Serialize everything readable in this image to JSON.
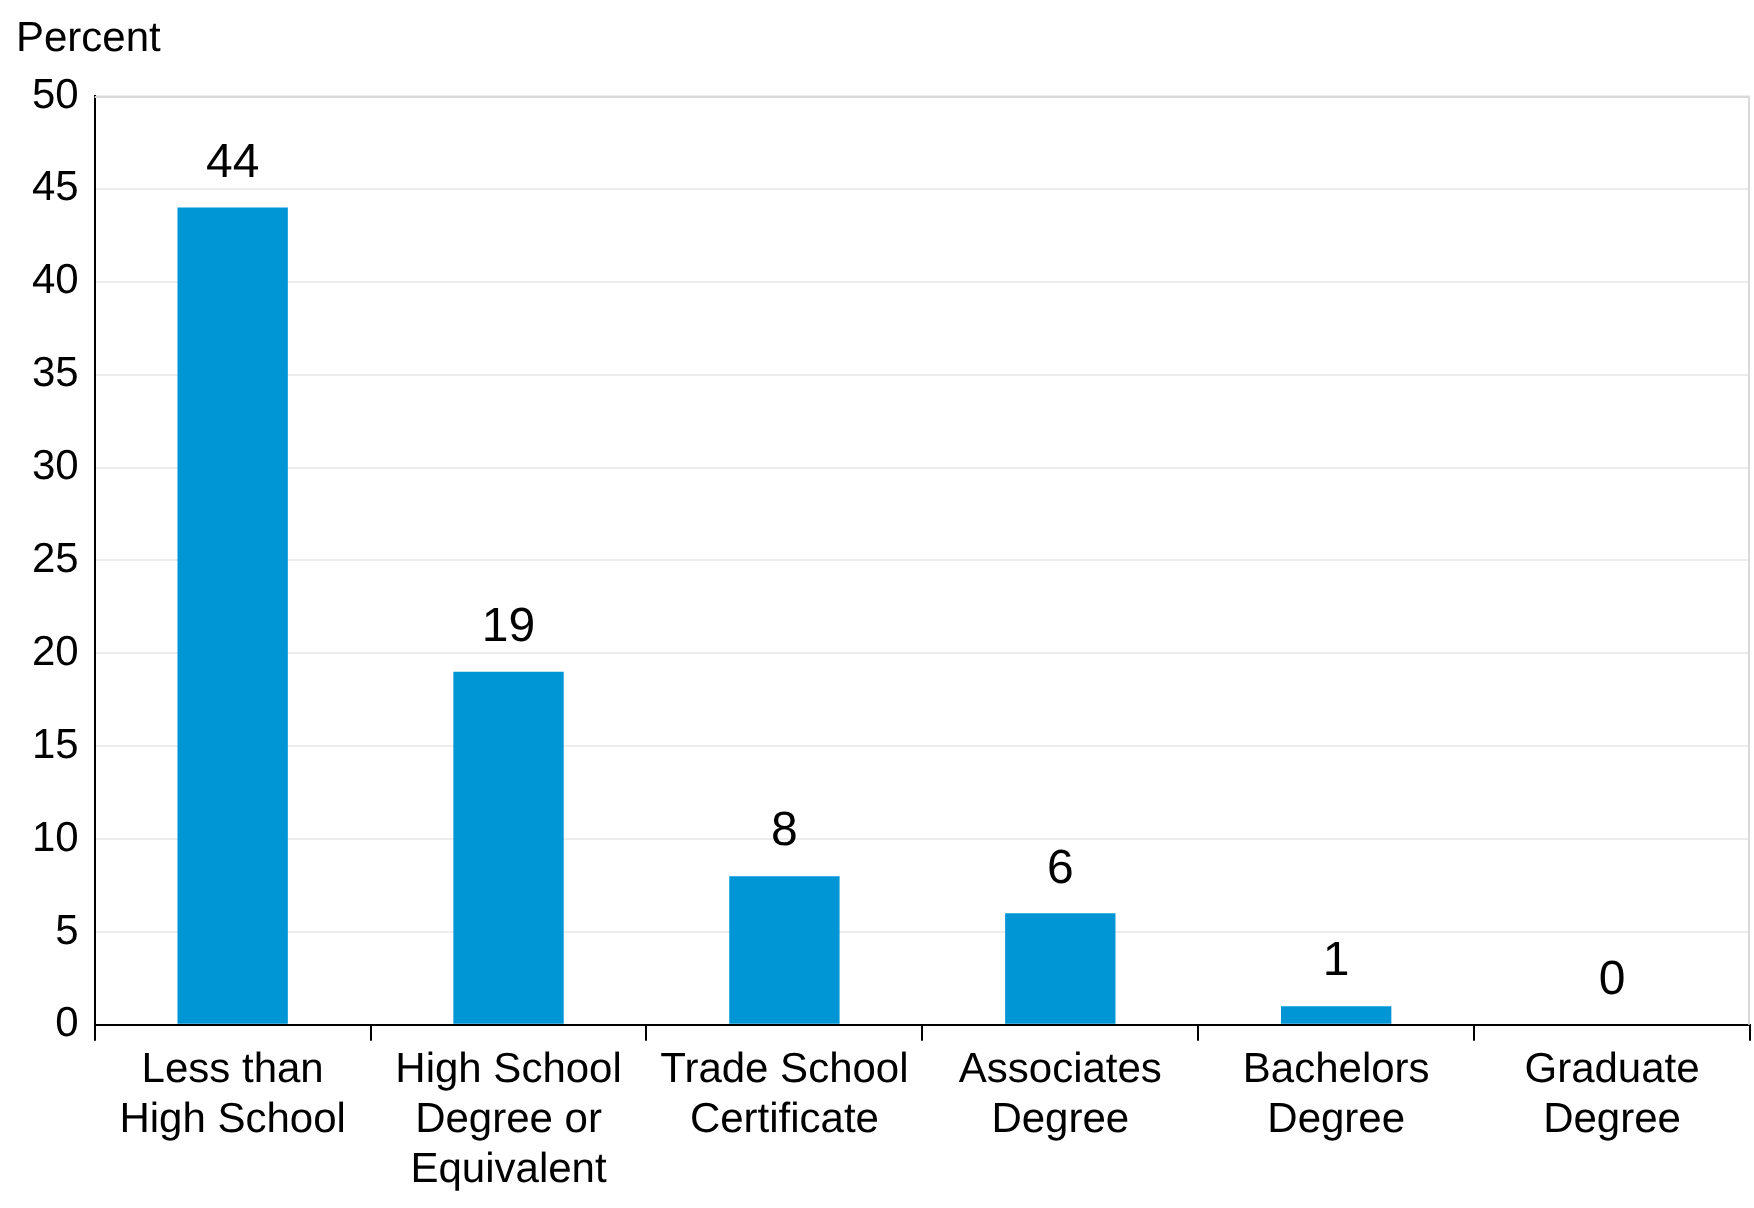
{
  "chart_data": {
    "type": "bar",
    "ylabel": "Percent",
    "categories": [
      "Less than High School",
      "High School Degree or Equivalent",
      "Trade School Certificate",
      "Associates Degree",
      "Bachelors Degree",
      "Graduate Degree"
    ],
    "values": [
      44,
      19,
      8,
      6,
      1,
      0
    ],
    "color": "#0096d6",
    "ylim": [
      0,
      50
    ],
    "yticks": [
      0,
      5,
      10,
      15,
      20,
      25,
      30,
      35,
      40,
      45,
      50
    ],
    "grid": "y",
    "data_labels": true
  }
}
